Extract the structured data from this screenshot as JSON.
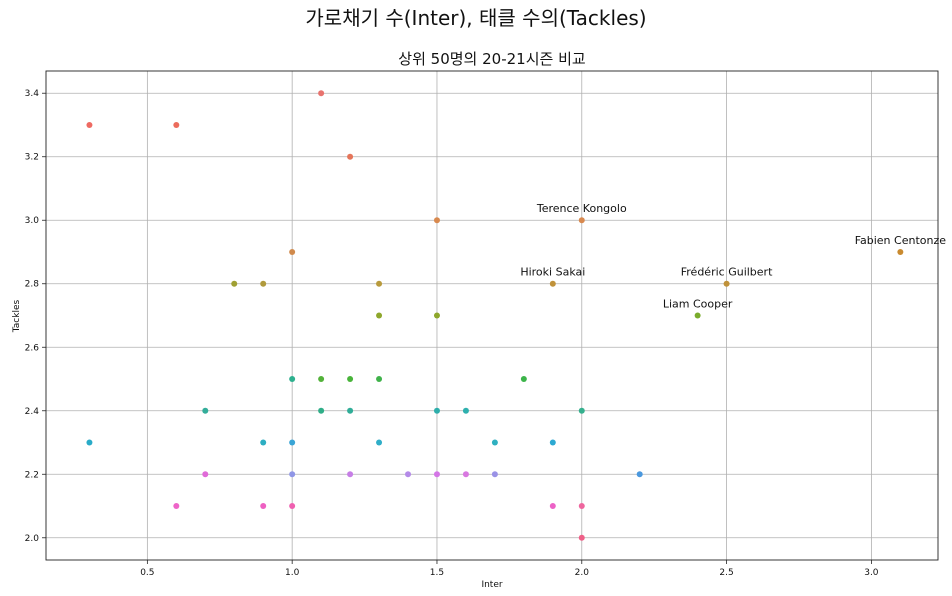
{
  "suptitle": "가로채기 수(Inter), 태클 수의(Tackles)",
  "chart_data": {
    "type": "scatter",
    "title": "상위 50명의 20-21시즌 비교",
    "xlabel": "Inter",
    "ylabel": "Tackles",
    "xlim": [
      0.15,
      3.23
    ],
    "ylim": [
      1.93,
      3.47
    ],
    "xticks": [
      0.5,
      1.0,
      1.5,
      2.0,
      2.5,
      3.0
    ],
    "xtick_labels": [
      "0.5",
      "1.0",
      "1.5",
      "2.0",
      "2.5",
      "3.0"
    ],
    "yticks": [
      2.0,
      2.2,
      2.4,
      2.6,
      2.8,
      3.0,
      3.2,
      3.4
    ],
    "ytick_labels": [
      "2.0",
      "2.2",
      "2.4",
      "2.6",
      "2.8",
      "3.0",
      "3.2",
      "3.4"
    ],
    "grid": true,
    "points": [
      {
        "x": 1.1,
        "y": 3.4,
        "color": "#e8736e"
      },
      {
        "x": 0.3,
        "y": 3.3,
        "color": "#ee6a62"
      },
      {
        "x": 0.6,
        "y": 3.3,
        "color": "#ec6c5c"
      },
      {
        "x": 1.2,
        "y": 3.2,
        "color": "#e5755a"
      },
      {
        "x": 1.5,
        "y": 3.0,
        "color": "#d8894f"
      },
      {
        "x": 2.0,
        "y": 3.0,
        "color": "#d8894f"
      },
      {
        "x": 1.0,
        "y": 2.9,
        "color": "#d08a4c"
      },
      {
        "x": 3.1,
        "y": 2.9,
        "color": "#c98a2f"
      },
      {
        "x": 0.8,
        "y": 2.8,
        "color": "#a0a033"
      },
      {
        "x": 0.9,
        "y": 2.8,
        "color": "#b09a3c"
      },
      {
        "x": 1.3,
        "y": 2.8,
        "color": "#b89a3c"
      },
      {
        "x": 1.9,
        "y": 2.8,
        "color": "#c0923a"
      },
      {
        "x": 2.5,
        "y": 2.8,
        "color": "#c0923a"
      },
      {
        "x": 1.3,
        "y": 2.7,
        "color": "#8ea72c"
      },
      {
        "x": 1.5,
        "y": 2.7,
        "color": "#8ea72c"
      },
      {
        "x": 2.4,
        "y": 2.7,
        "color": "#7aac2c"
      },
      {
        "x": 1.0,
        "y": 2.5,
        "color": "#2db08e"
      },
      {
        "x": 1.1,
        "y": 2.5,
        "color": "#53b23a"
      },
      {
        "x": 1.2,
        "y": 2.5,
        "color": "#48b43a"
      },
      {
        "x": 1.3,
        "y": 2.5,
        "color": "#3fb24a"
      },
      {
        "x": 1.8,
        "y": 2.5,
        "color": "#3cb44a"
      },
      {
        "x": 0.7,
        "y": 2.4,
        "color": "#33ad9a"
      },
      {
        "x": 1.1,
        "y": 2.4,
        "color": "#2fae88"
      },
      {
        "x": 1.2,
        "y": 2.4,
        "color": "#30ad98"
      },
      {
        "x": 1.5,
        "y": 2.4,
        "color": "#2eaeab"
      },
      {
        "x": 1.6,
        "y": 2.4,
        "color": "#2eb0ae"
      },
      {
        "x": 2.0,
        "y": 2.4,
        "color": "#35b08e"
      },
      {
        "x": 0.3,
        "y": 2.3,
        "color": "#29abc8"
      },
      {
        "x": 0.9,
        "y": 2.3,
        "color": "#2daec2"
      },
      {
        "x": 1.0,
        "y": 2.3,
        "color": "#3aa5d6"
      },
      {
        "x": 1.3,
        "y": 2.3,
        "color": "#30aec8"
      },
      {
        "x": 1.7,
        "y": 2.3,
        "color": "#2fb0c0"
      },
      {
        "x": 1.9,
        "y": 2.3,
        "color": "#2da9d2"
      },
      {
        "x": 0.7,
        "y": 2.2,
        "color": "#e06ad8"
      },
      {
        "x": 1.0,
        "y": 2.2,
        "color": "#8f96e6"
      },
      {
        "x": 1.2,
        "y": 2.2,
        "color": "#c67ee6"
      },
      {
        "x": 1.4,
        "y": 2.2,
        "color": "#b48ae8"
      },
      {
        "x": 1.5,
        "y": 2.2,
        "color": "#d476e6"
      },
      {
        "x": 1.6,
        "y": 2.2,
        "color": "#d878e0"
      },
      {
        "x": 1.7,
        "y": 2.2,
        "color": "#9a92e6"
      },
      {
        "x": 2.2,
        "y": 2.2,
        "color": "#4a98de"
      },
      {
        "x": 0.6,
        "y": 2.1,
        "color": "#ee64c8"
      },
      {
        "x": 0.9,
        "y": 2.1,
        "color": "#ee60c2"
      },
      {
        "x": 1.0,
        "y": 2.1,
        "color": "#ef60b0"
      },
      {
        "x": 1.9,
        "y": 2.1,
        "color": "#ec62c6"
      },
      {
        "x": 2.0,
        "y": 2.1,
        "color": "#ee669e"
      },
      {
        "x": 2.0,
        "y": 2.0,
        "color": "#ef6088"
      }
    ],
    "annotations": [
      {
        "text": "Terence Kongolo",
        "x": 2.0,
        "y": 3.0
      },
      {
        "text": "Fabien Centonze",
        "x": 3.1,
        "y": 2.9
      },
      {
        "text": "Hiroki Sakai",
        "x": 1.9,
        "y": 2.8
      },
      {
        "text": "Frédéric Guilbert",
        "x": 2.5,
        "y": 2.8
      },
      {
        "text": "Liam Cooper",
        "x": 2.4,
        "y": 2.7
      }
    ]
  }
}
